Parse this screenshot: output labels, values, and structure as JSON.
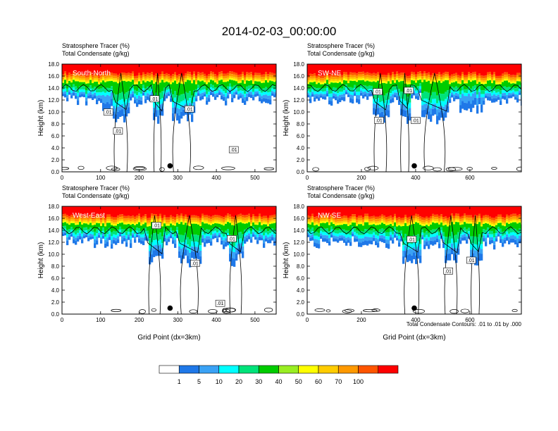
{
  "figure": {
    "title": "2014-02-03_00:00:00",
    "contour_note": "Total Condensate Contours: .01 to .01 by .000"
  },
  "colorbar": {
    "colors": [
      "#ffffff",
      "#1f78e8",
      "#3aa2f5",
      "#00ffff",
      "#00e37a",
      "#00cc00",
      "#99ee22",
      "#ffff00",
      "#ffcc00",
      "#ff9900",
      "#ff5500",
      "#ff0000"
    ],
    "labels": [
      "1",
      "5",
      "10",
      "20",
      "30",
      "40",
      "50",
      "60",
      "70",
      "100"
    ]
  },
  "chart_data": [
    {
      "type": "heatmap",
      "panel_label": "South-North",
      "title_line1": "Stratosphere Tracer   (%)",
      "title_line2": "Total Condensate   (g/kg)",
      "ylabel": "Height (km)",
      "xlabel": "",
      "xlim": [
        0,
        555
      ],
      "ylim": [
        0,
        18
      ],
      "xticks": [
        "0",
        "100",
        "200",
        "300",
        "400",
        "500"
      ],
      "yticks": [
        "0.0",
        "2.0",
        "4.0",
        "6.0",
        "8.0",
        "10.0",
        "12.0",
        "14.0",
        "16.0",
        "18.0"
      ],
      "marker": {
        "x": 280,
        "y": 1.0
      },
      "contour_labels": [
        {
          "text": ".01",
          "x": 120,
          "y": 10.0
        },
        {
          "text": ".01",
          "x": 145,
          "y": 6.8
        },
        {
          "text": ".01",
          "x": 240,
          "y": 12.2
        },
        {
          "text": ".01",
          "x": 330,
          "y": 10.5
        },
        {
          "text": ".01",
          "x": 445,
          "y": 3.7
        }
      ]
    },
    {
      "type": "heatmap",
      "panel_label": "SW-NE",
      "title_line1": "Stratosphere Tracer   (%)",
      "title_line2": "Total Condensate   (g/kg)",
      "ylabel": "Height (km)",
      "xlabel": "",
      "xlim": [
        0,
        790
      ],
      "ylim": [
        0,
        18
      ],
      "xticks": [
        "0",
        "200",
        "400",
        "600"
      ],
      "yticks": [
        "0.0",
        "2.0",
        "4.0",
        "6.0",
        "8.0",
        "10.0",
        "12.0",
        "14.0",
        "16.0",
        "18.0"
      ],
      "marker": {
        "x": 395,
        "y": 1.0
      },
      "contour_labels": [
        {
          "text": ".01",
          "x": 260,
          "y": 13.4
        },
        {
          "text": ".01",
          "x": 375,
          "y": 13.6
        },
        {
          "text": ".01",
          "x": 265,
          "y": 8.6
        },
        {
          "text": ".01",
          "x": 400,
          "y": 8.6
        }
      ]
    },
    {
      "type": "heatmap",
      "panel_label": "West-East",
      "title_line1": "Stratosphere Tracer   (%)",
      "title_line2": "Total Condensate   (g/kg)",
      "ylabel": "Height (km)",
      "xlabel": "Grid Point (dx=3km)",
      "xlim": [
        0,
        555
      ],
      "ylim": [
        0,
        18
      ],
      "xticks": [
        "0",
        "100",
        "200",
        "300",
        "400",
        "500"
      ],
      "yticks": [
        "0.0",
        "2.0",
        "4.0",
        "6.0",
        "8.0",
        "10.0",
        "12.0",
        "14.0",
        "16.0",
        "18.0"
      ],
      "marker": {
        "x": 280,
        "y": 1.0
      },
      "contour_labels": [
        {
          "text": ".01",
          "x": 245,
          "y": 14.8
        },
        {
          "text": ".01",
          "x": 440,
          "y": 12.6
        },
        {
          "text": ".01",
          "x": 345,
          "y": 8.5
        },
        {
          "text": ".01",
          "x": 410,
          "y": 1.8
        }
      ]
    },
    {
      "type": "heatmap",
      "panel_label": "NW-SE",
      "title_line1": "Stratosphere Tracer   (%)",
      "title_line2": "Total Condensate   (g/kg)",
      "ylabel": "Height (km)",
      "xlabel": "Grid Point (dx=3km)",
      "xlim": [
        0,
        790
      ],
      "ylim": [
        0,
        18
      ],
      "xticks": [
        "0",
        "200",
        "400",
        "600"
      ],
      "yticks": [
        "0.0",
        "2.0",
        "4.0",
        "6.0",
        "8.0",
        "10.0",
        "12.0",
        "14.0",
        "16.0",
        "18.0"
      ],
      "marker": {
        "x": 395,
        "y": 1.0
      },
      "contour_labels": [
        {
          "text": ".01",
          "x": 385,
          "y": 12.5
        },
        {
          "text": ".01",
          "x": 520,
          "y": 7.2
        },
        {
          "text": ".01",
          "x": 605,
          "y": 9.0
        }
      ]
    }
  ]
}
